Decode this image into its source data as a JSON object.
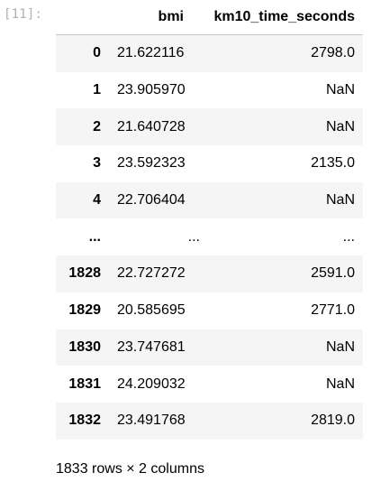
{
  "cell": {
    "prompt": "[11]:"
  },
  "dataframe": {
    "columns": [
      "",
      "bmi",
      "km10_time_seconds"
    ],
    "rows": [
      {
        "index": "0",
        "bmi": "21.622116",
        "km10_time_seconds": "2798.0"
      },
      {
        "index": "1",
        "bmi": "23.905970",
        "km10_time_seconds": "NaN"
      },
      {
        "index": "2",
        "bmi": "21.640728",
        "km10_time_seconds": "NaN"
      },
      {
        "index": "3",
        "bmi": "23.592323",
        "km10_time_seconds": "2135.0"
      },
      {
        "index": "4",
        "bmi": "22.706404",
        "km10_time_seconds": "NaN"
      },
      {
        "index": "...",
        "bmi": "...",
        "km10_time_seconds": "..."
      },
      {
        "index": "1828",
        "bmi": "22.727272",
        "km10_time_seconds": "2591.0"
      },
      {
        "index": "1829",
        "bmi": "20.585695",
        "km10_time_seconds": "2771.0"
      },
      {
        "index": "1830",
        "bmi": "23.747681",
        "km10_time_seconds": "NaN"
      },
      {
        "index": "1831",
        "bmi": "24.209032",
        "km10_time_seconds": "NaN"
      },
      {
        "index": "1832",
        "bmi": "23.491768",
        "km10_time_seconds": "2819.0"
      }
    ],
    "summary": "1833 rows × 2 columns"
  }
}
